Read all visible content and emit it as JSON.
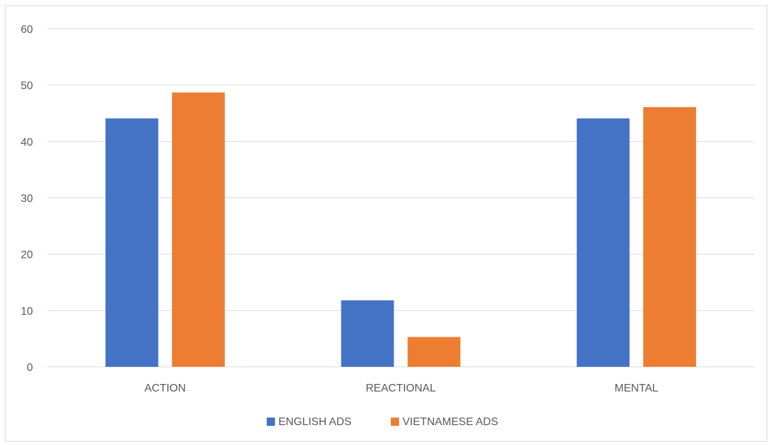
{
  "chart_data": {
    "type": "bar",
    "categories": [
      "ACTION",
      "REACTIONAL",
      "MENTAL"
    ],
    "series": [
      {
        "name": "ENGLISH ADS",
        "values": [
          44.1,
          11.8,
          44.1
        ],
        "color": "#4472c4"
      },
      {
        "name": "VIETNAMESE ADS",
        "values": [
          48.7,
          5.3,
          46.1
        ],
        "color": "#ed7d31"
      }
    ],
    "title": "",
    "xlabel": "",
    "ylabel": "",
    "ylim": [
      0,
      60
    ],
    "yticks": [
      0,
      10,
      20,
      30,
      40,
      50,
      60
    ],
    "grid": true,
    "legend_position": "bottom"
  }
}
